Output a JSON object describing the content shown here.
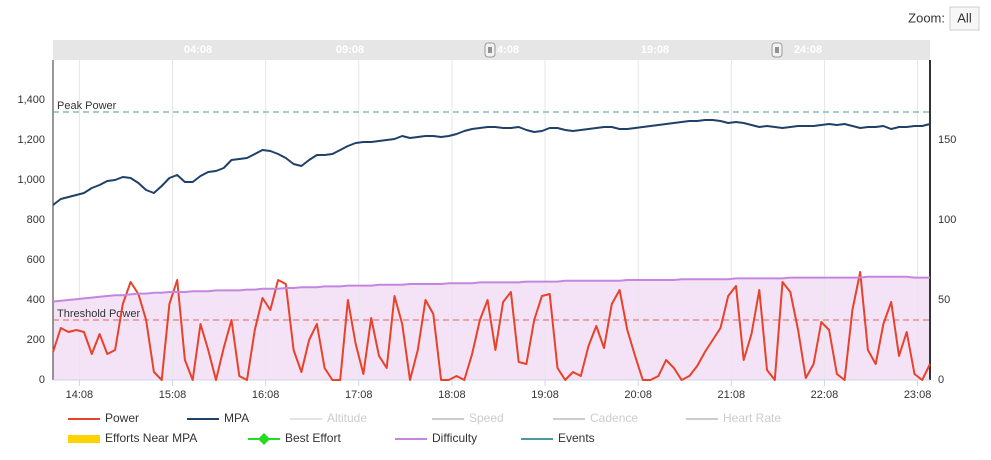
{
  "chart_data": {
    "type": "line",
    "zoom": {
      "label": "Zoom:",
      "button": "All"
    },
    "navigator": {
      "labels": [
        "04:08",
        "09:08",
        "14:08",
        "19:08",
        "24:08"
      ]
    },
    "x": [
      831,
      836,
      841,
      846,
      851,
      856,
      861,
      866,
      871,
      876,
      881,
      886,
      891,
      896,
      901,
      906,
      911,
      916,
      921,
      926,
      931,
      936,
      941,
      946,
      951,
      956,
      961,
      966,
      971,
      976,
      981,
      986,
      991,
      996,
      1001,
      1006,
      1011,
      1016,
      1021,
      1026,
      1031,
      1036,
      1041,
      1046,
      1051,
      1056,
      1061,
      1066,
      1071,
      1076,
      1081,
      1086,
      1091,
      1096,
      1101,
      1106,
      1111,
      1116,
      1121,
      1126,
      1131,
      1136,
      1141,
      1146,
      1151,
      1156,
      1161,
      1166,
      1171,
      1176,
      1181,
      1186,
      1191,
      1196,
      1201,
      1206,
      1211,
      1216,
      1221,
      1226,
      1231,
      1236,
      1241,
      1246,
      1251,
      1256,
      1261,
      1266,
      1271,
      1276,
      1281,
      1286,
      1291,
      1296,
      1301,
      1306,
      1311,
      1316,
      1321,
      1326,
      1331,
      1336,
      1341,
      1346,
      1351,
      1356,
      1361,
      1366,
      1371,
      1376,
      1381,
      1386,
      1391,
      1396
    ],
    "xlim": [
      831,
      1396
    ],
    "xticks": [
      {
        "value": 848,
        "label": "14:08"
      },
      {
        "value": 908,
        "label": "15:08"
      },
      {
        "value": 968,
        "label": "16:08"
      },
      {
        "value": 1028,
        "label": "17:08"
      },
      {
        "value": 1088,
        "label": "18:08"
      },
      {
        "value": 1148,
        "label": "19:08"
      },
      {
        "value": 1208,
        "label": "20:08"
      },
      {
        "value": 1268,
        "label": "21:08"
      },
      {
        "value": 1328,
        "label": "22:08"
      },
      {
        "value": 1388,
        "label": "23:08"
      }
    ],
    "ylim": [
      0,
      1600
    ],
    "yticks": [
      0,
      200,
      400,
      600,
      800,
      {
        "value": 1000,
        "label": "1,000"
      },
      {
        "value": 1200,
        "label": "1,200"
      },
      {
        "value": 1400,
        "label": "1,400"
      }
    ],
    "y2lim": [
      0,
      200
    ],
    "y2ticks": [
      0,
      50,
      100,
      150
    ],
    "grid": "x",
    "plot_lines": [
      {
        "text": "Peak Power",
        "value": 1340,
        "color": "#4a9a9a"
      },
      {
        "text": "Threshold Power",
        "value": 300,
        "color": "#e06060"
      }
    ],
    "series": [
      {
        "name": "Power",
        "color": "#e8422a",
        "values": [
          140,
          260,
          240,
          250,
          240,
          130,
          230,
          130,
          150,
          380,
          490,
          430,
          300,
          40,
          0,
          380,
          500,
          100,
          0,
          280,
          150,
          0,
          160,
          300,
          20,
          0,
          250,
          410,
          350,
          500,
          480,
          150,
          40,
          200,
          280,
          60,
          0,
          0,
          400,
          180,
          30,
          310,
          120,
          60,
          420,
          280,
          0,
          150,
          400,
          330,
          0,
          0,
          20,
          0,
          130,
          300,
          400,
          150,
          390,
          440,
          90,
          80,
          300,
          420,
          430,
          60,
          0,
          40,
          20,
          170,
          270,
          160,
          380,
          450,
          250,
          120,
          0,
          0,
          20,
          100,
          60,
          0,
          20,
          70,
          140,
          200,
          260,
          420,
          470,
          100,
          230,
          450,
          50,
          0,
          490,
          440,
          250,
          10,
          80,
          290,
          250,
          30,
          0,
          350,
          540,
          150,
          80,
          280,
          390,
          120,
          240,
          30,
          0,
          80
        ]
      },
      {
        "name": "MPA",
        "color": "#1f4068",
        "values": [
          875,
          905,
          915,
          925,
          935,
          960,
          975,
          995,
          1000,
          1015,
          1010,
          985,
          950,
          935,
          970,
          1010,
          1025,
          990,
          990,
          1020,
          1040,
          1045,
          1060,
          1100,
          1105,
          1110,
          1130,
          1150,
          1145,
          1130,
          1110,
          1080,
          1070,
          1100,
          1125,
          1125,
          1130,
          1150,
          1170,
          1185,
          1190,
          1190,
          1195,
          1200,
          1205,
          1220,
          1210,
          1215,
          1220,
          1220,
          1215,
          1220,
          1230,
          1245,
          1255,
          1260,
          1265,
          1265,
          1260,
          1260,
          1265,
          1250,
          1240,
          1245,
          1260,
          1260,
          1250,
          1245,
          1250,
          1255,
          1260,
          1265,
          1265,
          1255,
          1255,
          1260,
          1265,
          1270,
          1275,
          1280,
          1285,
          1290,
          1295,
          1295,
          1300,
          1300,
          1295,
          1285,
          1290,
          1285,
          1275,
          1265,
          1270,
          1265,
          1260,
          1265,
          1270,
          1270,
          1270,
          1275,
          1280,
          1275,
          1280,
          1270,
          1260,
          1265,
          1265,
          1270,
          1255,
          1265,
          1265,
          1270,
          1270,
          1280
        ]
      },
      {
        "name": "Difficulty",
        "color": "#c586e0",
        "fill": "#f4e3f6",
        "axis": "y2",
        "values": [
          49,
          49.5,
          50,
          50.5,
          51,
          51.5,
          52,
          52.5,
          53,
          53,
          53.5,
          54,
          54,
          54.5,
          54.5,
          55,
          55,
          55,
          55.5,
          55.5,
          55.5,
          56,
          56,
          56,
          56,
          56.5,
          56.5,
          57,
          57,
          57,
          57.5,
          57.5,
          58,
          58,
          58,
          58.5,
          58.5,
          58.5,
          59,
          59,
          59,
          59,
          59.5,
          59.5,
          59.5,
          59.5,
          60,
          60,
          60,
          60,
          60,
          60.5,
          60.5,
          60.5,
          60.5,
          61,
          61,
          61,
          61,
          61,
          61,
          61.5,
          61.5,
          61.5,
          61.5,
          61.5,
          62,
          62,
          62,
          62,
          62,
          62,
          62,
          62,
          62.5,
          62.5,
          62.5,
          62.5,
          62.5,
          62.5,
          62.5,
          63,
          63,
          63,
          63,
          63,
          63,
          63,
          63.5,
          63.5,
          63.5,
          63.5,
          63.5,
          63.5,
          63.5,
          64,
          64,
          64,
          64,
          64,
          64,
          64,
          64,
          64,
          64,
          64.5,
          64.5,
          64.5,
          64.5,
          64.5,
          64.5,
          64,
          64,
          64
        ]
      }
    ],
    "other_legend_items": [
      {
        "name": "Altitude",
        "color": "#e3e3e3",
        "hidden": true
      },
      {
        "name": "Speed",
        "color": "#cccccc",
        "hidden": true
      },
      {
        "name": "Cadence",
        "color": "#cccccc",
        "hidden": true
      },
      {
        "name": "Heart Rate",
        "color": "#cccccc",
        "hidden": true
      },
      {
        "name": "Efforts Near MPA",
        "color": "#ffd200",
        "symbol": "band"
      },
      {
        "name": "Best Effort",
        "color": "#22dd22",
        "symbol": "diamond"
      },
      {
        "name": "Events",
        "color": "#4a9a9a"
      }
    ]
  }
}
